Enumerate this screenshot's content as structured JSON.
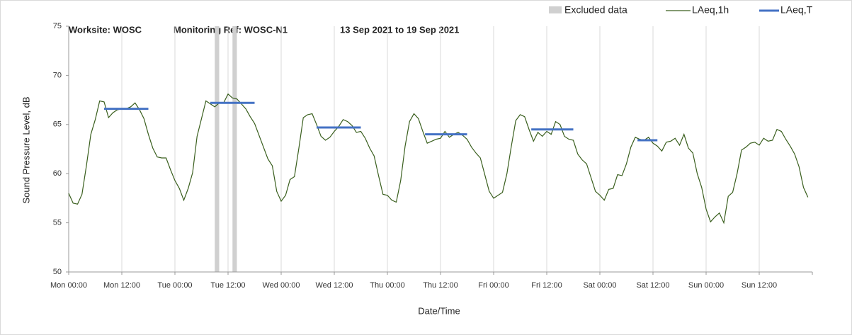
{
  "chart_data": {
    "type": "line",
    "title": [
      "Worksite: WOSC",
      "Monitoring Ref: WOSC-N1",
      "13 Sep 2021 to 19 Sep 2021"
    ],
    "x_label": "Date/Time",
    "y_label": "Sound Pressure Level, dB",
    "xlim": [
      0,
      168
    ],
    "xticks": [
      {
        "value": 0,
        "label": "Mon 00:00"
      },
      {
        "value": 12,
        "label": "Mon 12:00"
      },
      {
        "value": 24,
        "label": "Tue 00:00"
      },
      {
        "value": 36,
        "label": "Tue 12:00"
      },
      {
        "value": 48,
        "label": "Wed 00:00"
      },
      {
        "value": 60,
        "label": "Wed 12:00"
      },
      {
        "value": 72,
        "label": "Thu 00:00"
      },
      {
        "value": 84,
        "label": "Thu 12:00"
      },
      {
        "value": 96,
        "label": "Fri 00:00"
      },
      {
        "value": 108,
        "label": "Fri 12:00"
      },
      {
        "value": 120,
        "label": "Sat 00:00"
      },
      {
        "value": 132,
        "label": "Sat 12:00"
      },
      {
        "value": 144,
        "label": "Sun 00:00"
      },
      {
        "value": 156,
        "label": "Sun 12:00"
      }
    ],
    "ylim": [
      50,
      75
    ],
    "yticks": [
      50,
      55,
      60,
      65,
      70,
      75
    ],
    "grid": true,
    "excluded": {
      "name": "Excluded data",
      "color": "#d0d0d0",
      "ranges": [
        [
          33,
          34
        ],
        [
          37,
          38
        ]
      ]
    },
    "x": [
      0,
      1,
      2,
      3,
      4,
      5,
      6,
      7,
      8,
      9,
      10,
      11,
      12,
      13,
      14,
      15,
      16,
      17,
      18,
      19,
      20,
      21,
      22,
      23,
      24,
      25,
      26,
      27,
      28,
      29,
      30,
      31,
      32,
      33,
      34,
      35,
      36,
      37,
      38,
      39,
      40,
      41,
      42,
      43,
      44,
      45,
      46,
      47,
      48,
      49,
      50,
      51,
      52,
      53,
      54,
      55,
      56,
      57,
      58,
      59,
      60,
      61,
      62,
      63,
      64,
      65,
      66,
      67,
      68,
      69,
      70,
      71,
      72,
      73,
      74,
      75,
      76,
      77,
      78,
      79,
      80,
      81,
      82,
      83,
      84,
      85,
      86,
      87,
      88,
      89,
      90,
      91,
      92,
      93,
      94,
      95,
      96,
      97,
      98,
      99,
      100,
      101,
      102,
      103,
      104,
      105,
      106,
      107,
      108,
      109,
      110,
      111,
      112,
      113,
      114,
      115,
      116,
      117,
      118,
      119,
      120,
      121,
      122,
      123,
      124,
      125,
      126,
      127,
      128,
      129,
      130,
      131,
      132,
      133,
      134,
      135,
      136,
      137,
      138,
      139,
      140,
      141,
      142,
      143,
      144,
      145,
      146,
      147,
      148,
      149,
      150,
      151,
      152,
      153,
      154,
      155,
      156,
      157,
      158,
      159,
      160,
      161,
      162,
      163,
      164,
      165,
      166,
      167
    ],
    "series": [
      {
        "name": "LAeq,1h",
        "color": "#3a5f1e",
        "values": [
          58.0,
          57.0,
          56.9,
          57.9,
          60.8,
          64.0,
          65.5,
          67.4,
          67.3,
          65.7,
          66.2,
          66.5,
          66.6,
          66.6,
          66.8,
          67.2,
          66.5,
          65.6,
          64.0,
          62.6,
          61.7,
          61.6,
          61.6,
          60.4,
          59.3,
          58.5,
          57.3,
          58.5,
          60.1,
          63.8,
          65.6,
          67.4,
          67.1,
          66.8,
          67.2,
          67.2,
          68.1,
          67.7,
          67.6,
          67.1,
          66.6,
          65.8,
          65.1,
          63.9,
          62.7,
          61.5,
          60.8,
          58.2,
          57.2,
          57.8,
          59.4,
          59.7,
          62.6,
          65.7,
          66.0,
          66.1,
          65.0,
          63.8,
          63.4,
          63.7,
          64.3,
          64.8,
          65.5,
          65.3,
          64.9,
          64.2,
          64.3,
          63.6,
          62.6,
          61.8,
          59.8,
          57.9,
          57.8,
          57.3,
          57.1,
          59.3,
          62.8,
          65.3,
          66.1,
          65.6,
          64.3,
          63.1,
          63.3,
          63.5,
          63.6,
          64.3,
          63.7,
          64.0,
          64.2,
          63.9,
          63.5,
          62.7,
          62.1,
          61.6,
          59.9,
          58.2,
          57.5,
          57.8,
          58.1,
          60.0,
          62.8,
          65.4,
          66.0,
          65.8,
          64.5,
          63.3,
          64.2,
          63.8,
          64.3,
          64.0,
          65.3,
          65.0,
          63.8,
          63.5,
          63.4,
          62.0,
          61.4,
          61.0,
          59.6,
          58.2,
          57.8,
          57.3,
          58.4,
          58.5,
          59.9,
          59.8,
          61.0,
          62.7,
          63.7,
          63.5,
          63.4,
          63.7,
          63.1,
          62.8,
          62.3,
          63.2,
          63.3,
          63.6,
          62.9,
          64.0,
          62.6,
          62.1,
          60.0,
          58.6,
          56.4,
          55.1,
          55.6,
          56.0,
          55.0,
          57.7,
          58.1,
          60.0,
          62.4,
          62.7,
          63.1,
          63.2,
          62.9,
          63.6,
          63.3,
          63.4,
          64.5,
          64.3,
          63.5,
          62.8,
          62.0,
          60.7,
          58.6,
          57.6
        ]
      },
      {
        "name": "LAeq,T",
        "color": "#4472c4",
        "segments": [
          {
            "x": [
              8,
              18
            ],
            "value": 66.6
          },
          {
            "x": [
              32,
              42
            ],
            "value": 67.2
          },
          {
            "x": [
              56,
              66
            ],
            "value": 64.7
          },
          {
            "x": [
              80.5,
              90
            ],
            "value": 64.0
          },
          {
            "x": [
              104.5,
              114
            ],
            "value": 64.5
          },
          {
            "x": [
              128.5,
              133
            ],
            "value": 63.4
          }
        ]
      }
    ]
  }
}
